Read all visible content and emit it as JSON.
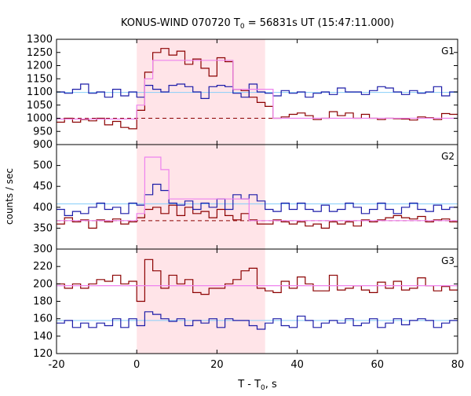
{
  "chart_data": {
    "type": "line",
    "title_main": "KONUS-WIND 070720 T",
    "title_sub": "0",
    "title_rest": " = 56831s UT (15:47:11.000)",
    "xlabel_main": "T - T",
    "xlabel_sub": "0",
    "xlabel_rest": ", s",
    "ylabel": "counts / sec",
    "xlim": [
      -20,
      80
    ],
    "x_ticks": [
      -20,
      0,
      20,
      40,
      60,
      80
    ],
    "shaded_interval": [
      0,
      32
    ],
    "colors": {
      "red": "#8b0000",
      "blue": "#1c1ca8",
      "pink": "#ee82ee",
      "cyan": "#87cefa",
      "shade": "#ffe4e8"
    },
    "panels": [
      {
        "name": "G1",
        "ylim": [
          900,
          1300
        ],
        "y_ticks": [
          900,
          950,
          1000,
          1050,
          1100,
          1150,
          1200,
          1250,
          1300
        ],
        "series": [
          {
            "color": "red",
            "x": [
              -22,
              -18,
              -16,
              -14,
              -12,
              -10,
              -8,
              -6,
              -4,
              -2,
              0,
              2,
              4,
              6,
              8,
              10,
              12,
              14,
              16,
              18,
              20,
              22,
              24,
              26,
              28,
              30,
              32,
              34,
              36,
              38,
              40,
              42,
              44,
              46,
              48,
              50,
              52,
              54,
              56,
              58,
              60,
              62,
              64,
              66,
              68,
              70,
              72,
              74,
              76,
              78,
              80
            ],
            "y": [
              985,
              1000,
              985,
              995,
              990,
              1000,
              975,
              988,
              965,
              960,
              1030,
              1175,
              1250,
              1265,
              1240,
              1255,
              1205,
              1225,
              1190,
              1160,
              1230,
              1215,
              1110,
              1105,
              1080,
              1060,
              1045,
              1000,
              1005,
              1015,
              1020,
              1010,
              995,
              1000,
              1025,
              1010,
              1020,
              1000,
              1015,
              1000,
              995,
              1000,
              998,
              997,
              993,
              1005,
              1002,
              995,
              1018,
              1015,
              1022
            ]
          },
          {
            "color": "blue",
            "x": [
              -22,
              -18,
              -16,
              -14,
              -12,
              -10,
              -8,
              -6,
              -4,
              -2,
              0,
              2,
              4,
              6,
              8,
              10,
              12,
              14,
              16,
              18,
              20,
              22,
              24,
              26,
              28,
              30,
              32,
              34,
              36,
              38,
              40,
              42,
              44,
              46,
              48,
              50,
              52,
              54,
              56,
              58,
              60,
              62,
              64,
              66,
              68,
              70,
              72,
              74,
              76,
              78,
              80
            ],
            "y": [
              1100,
              1095,
              1110,
              1130,
              1095,
              1100,
              1080,
              1110,
              1085,
              1100,
              1080,
              1125,
              1110,
              1100,
              1125,
              1130,
              1120,
              1100,
              1075,
              1120,
              1125,
              1120,
              1095,
              1080,
              1130,
              1100,
              1095,
              1085,
              1105,
              1095,
              1100,
              1080,
              1095,
              1100,
              1090,
              1115,
              1100,
              1100,
              1090,
              1105,
              1120,
              1115,
              1100,
              1090,
              1105,
              1095,
              1100,
              1120,
              1085,
              1100,
              1095
            ]
          },
          {
            "color": "pink",
            "x": [
              -22,
              -18,
              -16,
              -14,
              -12,
              -10,
              -8,
              -6,
              -4,
              -2,
              0,
              2,
              4,
              6,
              8,
              10,
              12,
              14,
              16,
              18,
              20,
              22,
              24,
              26,
              28,
              30,
              32,
              34,
              36,
              38,
              40,
              42,
              44,
              46,
              48,
              50,
              52,
              54,
              56,
              58,
              60,
              62,
              64,
              66,
              68,
              70,
              72,
              74,
              76,
              78,
              80
            ],
            "y": [
              997,
              997,
              997,
              997,
              997,
              997,
              997,
              997,
              997,
              997,
              1050,
              1150,
              1220,
              1220,
              1220,
              1220,
              1220,
              1220,
              1220,
              1220,
              1220,
              1220,
              1110,
              1110,
              1110,
              1110,
              1110,
              1000,
              1000,
              1000,
              1000,
              1000,
              1000,
              1000,
              1000,
              1000,
              1000,
              1000,
              1000,
              1000,
              1000,
              1000,
              1000,
              1000,
              1000,
              1000,
              1000,
              1000,
              1000,
              1000,
              1000
            ]
          }
        ],
        "hlines": [
          {
            "color": "cyan",
            "y": 1098,
            "dashed": false
          },
          {
            "color": "red",
            "y": 1000,
            "dashed": true
          }
        ]
      },
      {
        "name": "G2",
        "ylim": [
          300,
          550
        ],
        "y_ticks": [
          300,
          350,
          400,
          450,
          500
        ],
        "series": [
          {
            "color": "red",
            "x": [
              -22,
              -18,
              -16,
              -14,
              -12,
              -10,
              -8,
              -6,
              -4,
              -2,
              0,
              2,
              4,
              6,
              8,
              10,
              12,
              14,
              16,
              18,
              20,
              22,
              24,
              26,
              28,
              30,
              32,
              34,
              36,
              38,
              40,
              42,
              44,
              46,
              48,
              50,
              52,
              54,
              56,
              58,
              60,
              62,
              64,
              66,
              68,
              70,
              72,
              74,
              76,
              78,
              80
            ],
            "y": [
              360,
              375,
              365,
              370,
              350,
              370,
              365,
              372,
              360,
              365,
              375,
              395,
              400,
              385,
              405,
              380,
              400,
              385,
              390,
              375,
              395,
              380,
              370,
              385,
              370,
              360,
              360,
              370,
              365,
              360,
              365,
              355,
              360,
              350,
              365,
              360,
              365,
              355,
              370,
              365,
              370,
              375,
              380,
              375,
              372,
              378,
              365,
              370,
              372,
              365,
              360
            ]
          },
          {
            "color": "blue",
            "x": [
              -22,
              -18,
              -16,
              -14,
              -12,
              -10,
              -8,
              -6,
              -4,
              -2,
              0,
              2,
              4,
              6,
              8,
              10,
              12,
              14,
              16,
              18,
              20,
              22,
              24,
              26,
              28,
              30,
              32,
              34,
              36,
              38,
              40,
              42,
              44,
              46,
              48,
              50,
              52,
              54,
              56,
              58,
              60,
              62,
              64,
              66,
              68,
              70,
              72,
              74,
              76,
              78,
              80
            ],
            "y": [
              395,
              380,
              390,
              385,
              400,
              410,
              395,
              400,
              385,
              410,
              405,
              430,
              455,
              440,
              410,
              405,
              415,
              395,
              410,
              400,
              420,
              395,
              430,
              420,
              430,
              415,
              395,
              390,
              410,
              395,
              410,
              395,
              390,
              405,
              390,
              395,
              410,
              400,
              385,
              395,
              410,
              395,
              385,
              400,
              410,
              395,
              390,
              405,
              395,
              400,
              410
            ]
          },
          {
            "color": "pink",
            "x": [
              -22,
              -18,
              -16,
              -14,
              -12,
              -10,
              -8,
              -6,
              -4,
              -2,
              0,
              2,
              4,
              6,
              8,
              10,
              12,
              14,
              16,
              18,
              20,
              22,
              24,
              26,
              28,
              30,
              32,
              34,
              36,
              38,
              40,
              42,
              44,
              46,
              48,
              50,
              52,
              54,
              56,
              58,
              60,
              62,
              64,
              66,
              68,
              70,
              72,
              74,
              76,
              78,
              80
            ],
            "y": [
              368,
              368,
              368,
              368,
              368,
              368,
              368,
              368,
              368,
              368,
              385,
              520,
              520,
              490,
              420,
              420,
              420,
              420,
              420,
              420,
              420,
              420,
              420,
              420,
              368,
              368,
              368,
              368,
              368,
              368,
              368,
              368,
              368,
              368,
              368,
              368,
              368,
              368,
              368,
              368,
              368,
              368,
              368,
              368,
              368,
              368,
              368,
              368,
              368,
              368,
              368
            ]
          }
        ],
        "hlines": [
          {
            "color": "cyan",
            "y": 408,
            "dashed": false
          },
          {
            "color": "red",
            "y": 368,
            "dashed": true
          }
        ]
      },
      {
        "name": "G3",
        "ylim": [
          120,
          240
        ],
        "y_ticks": [
          120,
          140,
          160,
          180,
          200,
          220
        ],
        "series": [
          {
            "color": "red",
            "x": [
              -22,
              -18,
              -16,
              -14,
              -12,
              -10,
              -8,
              -6,
              -4,
              -2,
              0,
              2,
              4,
              6,
              8,
              10,
              12,
              14,
              16,
              18,
              20,
              22,
              24,
              26,
              28,
              30,
              32,
              34,
              36,
              38,
              40,
              42,
              44,
              46,
              48,
              50,
              52,
              54,
              56,
              58,
              60,
              62,
              64,
              66,
              68,
              70,
              72,
              74,
              76,
              78,
              80
            ],
            "y": [
              200,
              195,
              200,
              195,
              200,
              205,
              203,
              210,
              200,
              203,
              180,
              228,
              215,
              195,
              210,
              200,
              205,
              190,
              188,
              195,
              195,
              200,
              205,
              215,
              218,
              195,
              192,
              190,
              203,
              195,
              208,
              200,
              192,
              192,
              210,
              193,
              195,
              198,
              193,
              190,
              202,
              195,
              203,
              193,
              195,
              207,
              198,
              192,
              197,
              193,
              210
            ]
          },
          {
            "color": "blue",
            "x": [
              -22,
              -18,
              -16,
              -14,
              -12,
              -10,
              -8,
              -6,
              -4,
              -2,
              0,
              2,
              4,
              6,
              8,
              10,
              12,
              14,
              16,
              18,
              20,
              22,
              24,
              26,
              28,
              30,
              32,
              34,
              36,
              38,
              40,
              42,
              44,
              46,
              48,
              50,
              52,
              54,
              56,
              58,
              60,
              62,
              64,
              66,
              68,
              70,
              72,
              74,
              76,
              78,
              80
            ],
            "y": [
              155,
              158,
              150,
              155,
              150,
              155,
              152,
              160,
              150,
              160,
              152,
              168,
              165,
              160,
              157,
              160,
              152,
              158,
              155,
              160,
              150,
              160,
              158,
              158,
              152,
              148,
              155,
              160,
              152,
              150,
              163,
              158,
              150,
              155,
              158,
              155,
              160,
              152,
              155,
              160,
              150,
              155,
              160,
              153,
              158,
              160,
              158,
              150,
              155,
              158,
              163
            ]
          },
          {
            "color": "pink",
            "x": [
              -22,
              80
            ],
            "y": [
              198,
              198
            ]
          }
        ],
        "hlines": [
          {
            "color": "cyan",
            "y": 158,
            "dashed": false
          }
        ]
      }
    ]
  }
}
